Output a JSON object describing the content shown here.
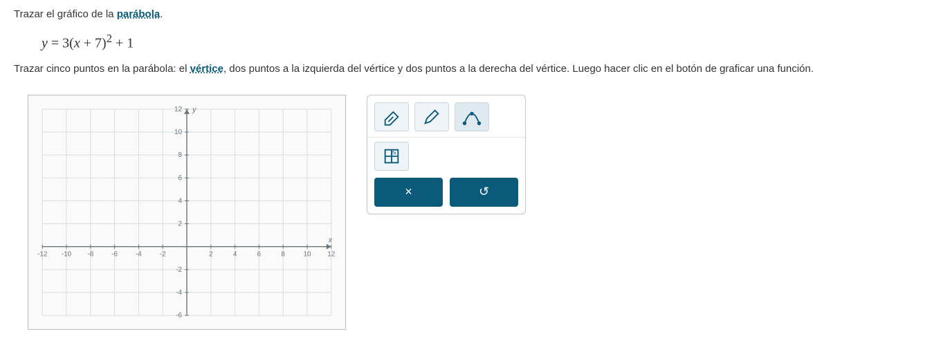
{
  "question": {
    "intro_pre": "Trazar el gráfico de la ",
    "intro_link": "parábola",
    "intro_post": ".",
    "equation_html": "y = 3(x + 7)² + 1",
    "instruction_pre": "Trazar cinco puntos en la parábola: el ",
    "instruction_link": "vértice",
    "instruction_post": ", dos puntos a la izquierda del vértice y dos puntos a la derecha del vértice. Luego hacer clic en el botón de graficar una función."
  },
  "graph": {
    "xlim": [
      -12,
      12
    ],
    "ylim": [
      -6,
      12
    ],
    "xtick_step": 2,
    "ytick_step": 2,
    "x_axis_label": "x",
    "y_axis_label": "y",
    "grid_color": "#d7dde1",
    "axis_color": "#6b7479",
    "label_color": "#6b7479",
    "label_fontsize": 10,
    "background_color": "#fafafa"
  },
  "toolbar": {
    "tools": {
      "eraser": "eraser-icon",
      "pencil": "pencil-icon",
      "curve": "curve-icon",
      "grid": "grid-icon"
    },
    "actions": {
      "clear": "×",
      "undo": "↺"
    },
    "colors": {
      "button_bg": "#eef4f7",
      "action_bg": "#0b5a7a",
      "border": "#c9d4d9",
      "icon_stroke": "#0b5a7a"
    }
  }
}
